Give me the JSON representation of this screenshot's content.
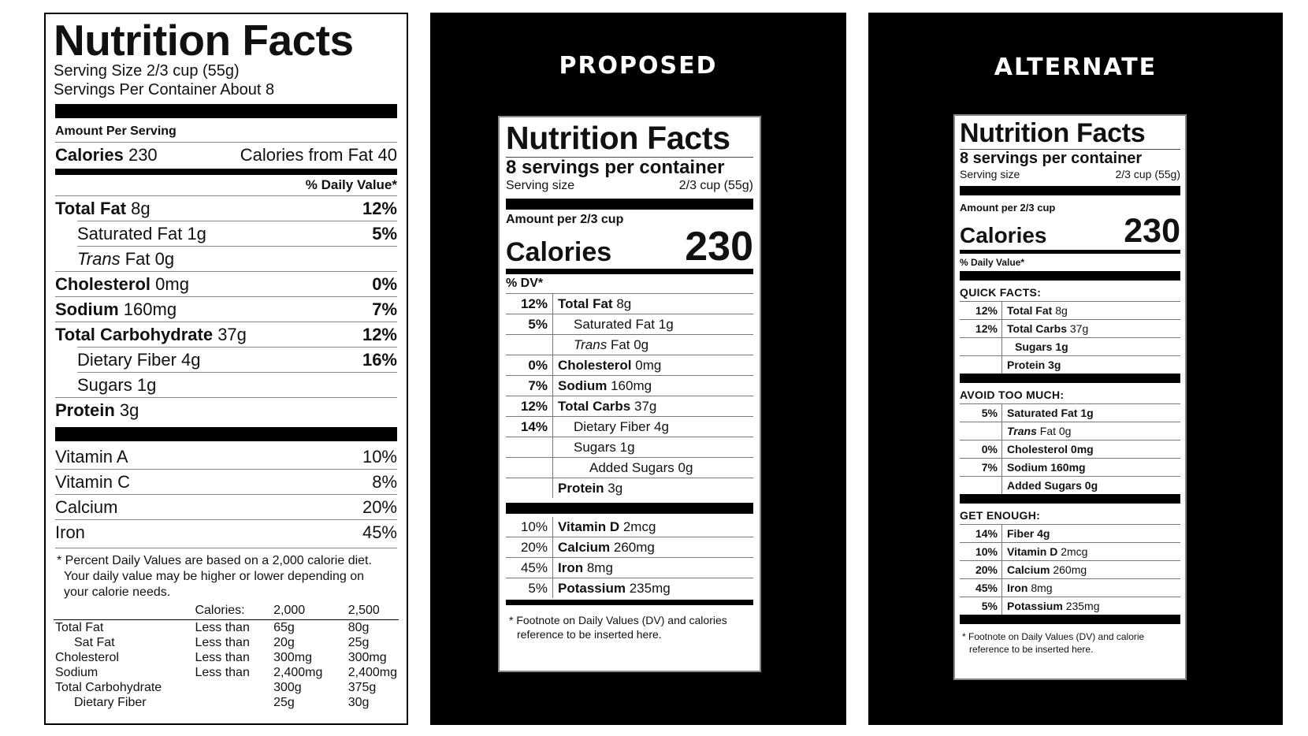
{
  "current": {
    "title": "Nutrition Facts",
    "serving_size": "Serving Size 2/3 cup (55g)",
    "servings_per_container": "Servings Per Container About 8",
    "amount_per_serving": "Amount Per Serving",
    "calories_label": "Calories",
    "calories_value": "230",
    "calories_from_fat": "Calories from Fat 40",
    "daily_value_header": "% Daily Value*",
    "nutrients": [
      {
        "name": "Total Fat",
        "amount": "8g",
        "pct": "12%"
      },
      {
        "name": "Saturated Fat",
        "amount": "1g",
        "pct": "5%"
      },
      {
        "name": "Trans",
        "suffix": "Fat 0g",
        "pct": ""
      },
      {
        "name": "Cholesterol",
        "amount": "0mg",
        "pct": "0%"
      },
      {
        "name": "Sodium",
        "amount": "160mg",
        "pct": "7%"
      },
      {
        "name": "Total Carbohydrate",
        "amount": "37g",
        "pct": "12%"
      },
      {
        "name": "Dietary Fiber",
        "amount": "4g",
        "pct": "16%"
      },
      {
        "name": "Sugars",
        "amount": "1g",
        "pct": ""
      },
      {
        "name": "Protein",
        "amount": "3g",
        "pct": ""
      }
    ],
    "vitamins": [
      {
        "name": "Vitamin A",
        "pct": "10%"
      },
      {
        "name": "Vitamin C",
        "pct": "8%"
      },
      {
        "name": "Calcium",
        "pct": "20%"
      },
      {
        "name": "Iron",
        "pct": "45%"
      }
    ],
    "footnote_lines": [
      "* Percent Daily Values are based on a 2,000 calorie diet.",
      "Your daily value may be higher or lower depending on",
      "your calorie needs."
    ],
    "dv_table": {
      "header": [
        "",
        "Calories:",
        "2,000",
        "2,500"
      ],
      "rows": [
        [
          "Total Fat",
          "Less than",
          "65g",
          "80g"
        ],
        [
          "Sat Fat",
          "Less than",
          "20g",
          "25g"
        ],
        [
          "Cholesterol",
          "Less than",
          "300mg",
          "300mg"
        ],
        [
          "Sodium",
          "Less than",
          "2,400mg",
          "2,400mg"
        ],
        [
          "Total Carbohydrate",
          "",
          "300g",
          "375g"
        ],
        [
          "Dietary Fiber",
          "",
          "25g",
          "30g"
        ]
      ]
    }
  },
  "proposed": {
    "heading": "PROPOSED",
    "title": "Nutrition Facts",
    "servings_per_container": "8 servings per container",
    "serving_size_label": "Serving size",
    "serving_size_value": "2/3 cup (55g)",
    "amount_per": "Amount per 2/3 cup",
    "calories_label": "Calories",
    "calories_value": "230",
    "dv_header": "% DV*",
    "rows": [
      {
        "pct": "12%",
        "name": "Total Fat",
        "amount": "8g"
      },
      {
        "pct": "5%",
        "name": "Saturated Fat",
        "amount": "1g"
      },
      {
        "pct": "",
        "name": "Trans",
        "amount": "Fat 0g"
      },
      {
        "pct": "0%",
        "name": "Cholesterol",
        "amount": "0mg"
      },
      {
        "pct": "7%",
        "name": "Sodium",
        "amount": "160mg"
      },
      {
        "pct": "12%",
        "name": "Total Carbs",
        "amount": "37g"
      },
      {
        "pct": "14%",
        "name": "Dietary Fiber",
        "amount": "4g"
      },
      {
        "pct": "",
        "name": "Sugars",
        "amount": "1g"
      },
      {
        "pct": "",
        "name": "Added Sugars",
        "amount": "0g"
      },
      {
        "pct": "",
        "name": "Protein",
        "amount": "3g"
      }
    ],
    "vitamins": [
      {
        "pct": "10%",
        "name": "Vitamin D",
        "amount": "2mcg"
      },
      {
        "pct": "20%",
        "name": "Calcium",
        "amount": "260mg"
      },
      {
        "pct": "45%",
        "name": "Iron",
        "amount": "8mg"
      },
      {
        "pct": "5%",
        "name": "Potassium",
        "amount": "235mg"
      }
    ],
    "footnote": "* Footnote on Daily Values (DV) and calories reference to be inserted here."
  },
  "alternate": {
    "heading": "ALTERNATE",
    "title": "Nutrition Facts",
    "servings_per_container": "8 servings per container",
    "serving_size_label": "Serving size",
    "serving_size_value": "2/3 cup (55g)",
    "amount_per": "Amount per 2/3 cup",
    "calories_label": "Calories",
    "calories_value": "230",
    "dv_header": "% Daily Value*",
    "quick_facts": {
      "label": "QUICK FACTS:",
      "rows": [
        {
          "pct": "12%",
          "name": "Total Fat",
          "amount": "8g"
        },
        {
          "pct": "12%",
          "name": "Total Carbs",
          "amount": "37g"
        },
        {
          "pct": "",
          "name": "Sugars",
          "amount": "1g"
        },
        {
          "pct": "",
          "name": "Protein",
          "amount": "3g"
        }
      ]
    },
    "avoid": {
      "label": "AVOID TOO MUCH:",
      "rows": [
        {
          "pct": "5%",
          "name": "Saturated Fat",
          "amount": "1g"
        },
        {
          "pct": "",
          "name": "Trans",
          "amount": "Fat 0g"
        },
        {
          "pct": "0%",
          "name": "Cholesterol",
          "amount": "0mg"
        },
        {
          "pct": "7%",
          "name": "Sodium",
          "amount": "160mg"
        },
        {
          "pct": "",
          "name": "Added Sugars",
          "amount": "0g"
        }
      ]
    },
    "get_enough": {
      "label": "GET ENOUGH:",
      "rows": [
        {
          "pct": "14%",
          "name": "Fiber",
          "amount": "4g"
        },
        {
          "pct": "10%",
          "name": "Vitamin D",
          "amount": "2mcg"
        },
        {
          "pct": "20%",
          "name": "Calcium",
          "amount": "260mg"
        },
        {
          "pct": "45%",
          "name": "Iron",
          "amount": "8mg"
        },
        {
          "pct": "5%",
          "name": "Potassium",
          "amount": "235mg"
        }
      ]
    },
    "footnote": "* Footnote on Daily Values (DV) and calorie reference to be inserted here."
  }
}
